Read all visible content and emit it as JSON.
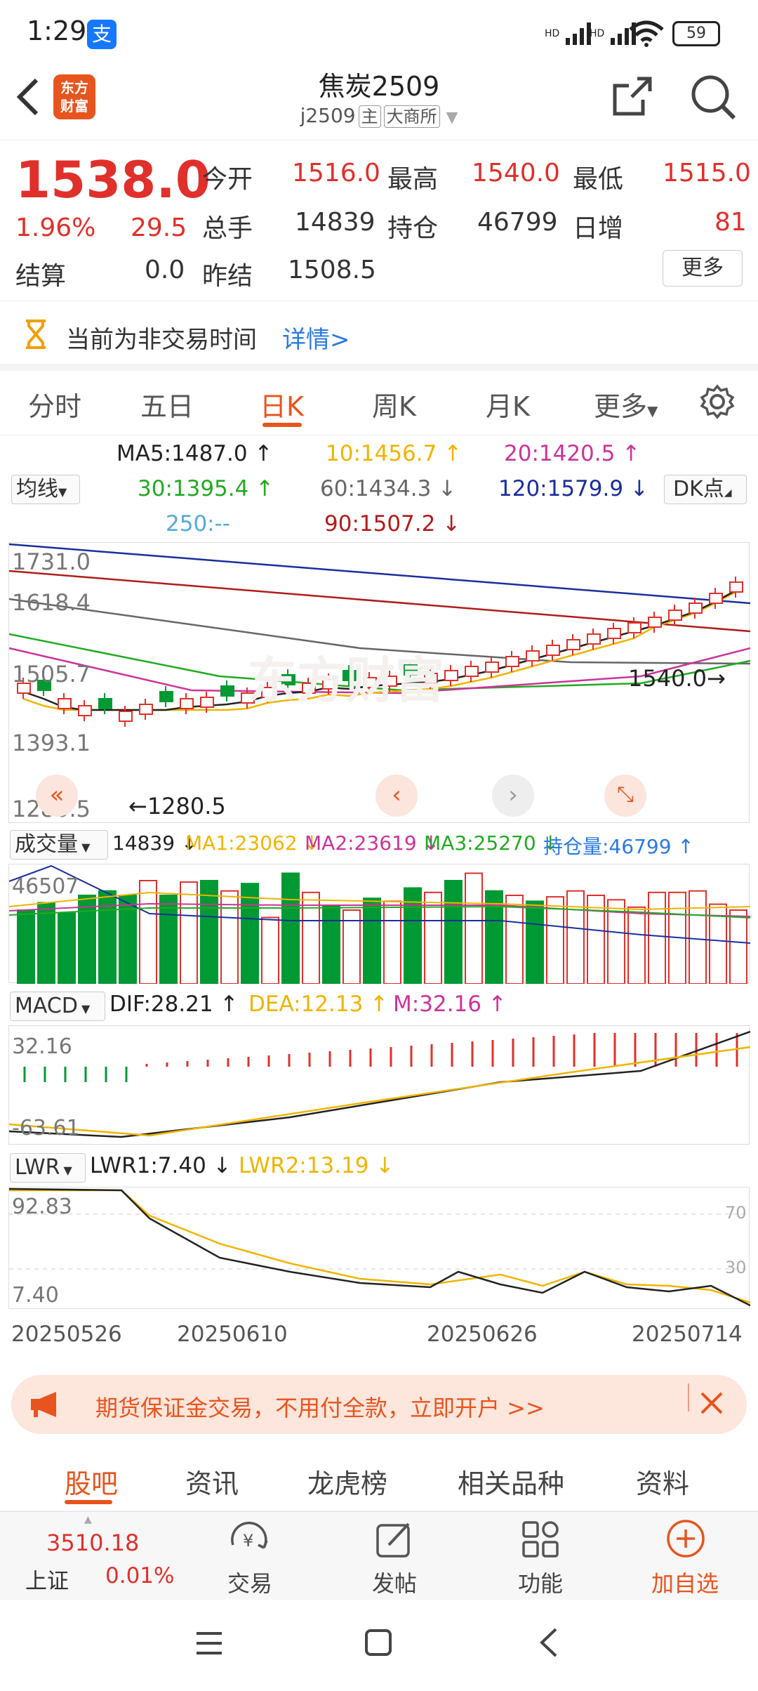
{
  "status_bar": {
    "time": "1:29",
    "alipay_glyph": "支",
    "battery": "59",
    "signal1": "HD",
    "signal2": "HD"
  },
  "header": {
    "logo_line1": "东方",
    "logo_line2": "财富",
    "title": "焦炭2509",
    "code": "j2509",
    "tag_main": "主",
    "exchange": "大商所"
  },
  "quote": {
    "price": "1538.0",
    "change_pct": "1.96%",
    "change": "29.5",
    "open_label": "今开",
    "open": "1516.0",
    "high_label": "最高",
    "high": "1540.0",
    "low_label": "最低",
    "low": "1515.0",
    "volume_label": "总手",
    "volume": "14839",
    "oi_label": "持仓",
    "oi": "46799",
    "daily_inc_label": "日增",
    "daily_inc": "81",
    "settle_label": "结算",
    "settle": "0.0",
    "prev_settle_label": "昨结",
    "prev_settle": "1508.5",
    "more_label": "更多"
  },
  "notice": {
    "text": "当前为非交易时间",
    "link": "详情>"
  },
  "tabs": [
    "分时",
    "五日",
    "日K",
    "周K",
    "月K",
    "更多"
  ],
  "active_tab": "日K",
  "ma": {
    "selector": "均线",
    "dk_label": "DK点",
    "ma5": "MA5:1487.0 ↑",
    "ma10": "10:1456.7 ↑",
    "ma20": "20:1420.5 ↑",
    "ma30": "30:1395.4 ↑",
    "ma60": "60:1434.3 ↓",
    "ma120": "120:1579.9 ↓",
    "ma250": "250:--",
    "ma90": "90:1507.2 ↓"
  },
  "colors": {
    "up": "#e0302b",
    "down": "#009933",
    "ma5": "#222222",
    "ma10": "#f0b400",
    "ma20": "#cc3399",
    "ma30": "#22aa22",
    "ma60": "#666666",
    "ma120": "#1a2e9e",
    "ma90": "#b01c1c",
    "ma250": "#55aadd"
  },
  "kchart": {
    "y_labels": [
      "1731.0",
      "1618.4",
      "1505.7",
      "1393.1",
      "1280.5"
    ],
    "high_label": "1540.0",
    "low_label": "1280.5",
    "watermark": "东方财富"
  },
  "volume": {
    "selector": "成交量",
    "vol": "14839 ↓",
    "ma1": "MA1:23062 ↓",
    "ma2": "MA2:23619 ↓",
    "ma3": "MA3:25270 ↓",
    "oi": "持仓量:46799 ↑",
    "y_label": "46507"
  },
  "macd": {
    "selector": "MACD",
    "dif": "DIF:28.21 ↑",
    "dea": "DEA:12.13 ↑",
    "m": "M:32.16 ↑",
    "y_top": "32.16",
    "y_bottom": "-63.61"
  },
  "lwr": {
    "selector": "LWR",
    "lwr1": "LWR1:7.40 ↓",
    "lwr2": "LWR2:13.19 ↓",
    "y_top": "92.83",
    "y_bottom": "7.40",
    "ref70": "70",
    "ref30": "30"
  },
  "dates": [
    "20250526",
    "20250610",
    "20250626",
    "20250714"
  ],
  "banner": {
    "text": "期货保证金交易，不用付全款，立即开户 >>"
  },
  "bottom_tabs": [
    "股吧",
    "资讯",
    "龙虎榜",
    "相关品种",
    "资料"
  ],
  "toolbar": {
    "index_value": "3510.18",
    "index_name": "上证",
    "index_change": "0.01%",
    "trade": "交易",
    "post": "发帖",
    "functions": "功能",
    "add_watch": "加自选"
  }
}
